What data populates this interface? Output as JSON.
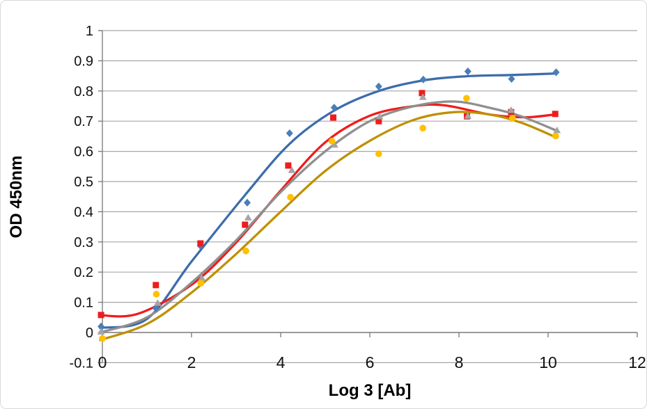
{
  "chart_data": {
    "type": "scatter",
    "title": "",
    "xlabel": "Log 3 [Ab]",
    "ylabel": "OD 450nm",
    "xlim": [
      0,
      12
    ],
    "ylim": [
      -0.1,
      1
    ],
    "x_ticks": [
      "0",
      "2",
      "4",
      "6",
      "8",
      "10",
      "12"
    ],
    "x_tick_values": [
      0,
      2,
      4,
      6,
      8,
      10,
      12
    ],
    "y_ticks": [
      "1",
      "0.9",
      "0.8",
      "0.7",
      "0.6",
      "0.5",
      "0.4",
      "0.3",
      "0.2",
      "0.1",
      "0",
      "-0.1"
    ],
    "y_tick_values": [
      1,
      0.9,
      0.8,
      0.7,
      0.6,
      0.5,
      0.4,
      0.3,
      0.2,
      0.1,
      0,
      -0.1
    ],
    "grid": "horizontal",
    "legend": "none",
    "axis_crosses_at_y": 0,
    "gridline_color": "#a6a6a6",
    "axis_color": "#7f7f7f",
    "series": [
      {
        "name": "blue-diamonds",
        "marker": "diamond",
        "marker_color": "#4a7ebb",
        "line_color": "#3c6cab",
        "points": [
          [
            -0.03,
            0.02
          ],
          [
            1.2,
            0.08
          ],
          [
            2.2,
            0.287
          ],
          [
            3.25,
            0.43
          ],
          [
            4.2,
            0.66
          ],
          [
            5.2,
            0.745
          ],
          [
            6.2,
            0.815
          ],
          [
            7.2,
            0.838
          ],
          [
            8.2,
            0.865
          ],
          [
            9.18,
            0.84
          ],
          [
            10.18,
            0.862
          ]
        ],
        "trend": [
          [
            -0.05,
            0.015
          ],
          [
            1,
            0.045
          ],
          [
            2,
            0.235
          ],
          [
            3.2,
            0.455
          ],
          [
            4.2,
            0.625
          ],
          [
            5.2,
            0.735
          ],
          [
            6.2,
            0.8
          ],
          [
            7.2,
            0.835
          ],
          [
            8.2,
            0.849
          ],
          [
            9.2,
            0.853
          ],
          [
            10.2,
            0.858
          ]
        ]
      },
      {
        "name": "red-squares",
        "marker": "square",
        "marker_color": "#ee1c1c",
        "line_color": "#ee1c1c",
        "points": [
          [
            -0.03,
            0.058
          ],
          [
            1.2,
            0.157
          ],
          [
            2.2,
            0.295
          ],
          [
            3.2,
            0.357
          ],
          [
            4.17,
            0.553
          ],
          [
            5.18,
            0.712
          ],
          [
            6.2,
            0.7
          ],
          [
            7.17,
            0.793
          ],
          [
            8.18,
            0.716
          ],
          [
            9.17,
            0.73
          ],
          [
            10.16,
            0.724
          ]
        ],
        "trend": [
          [
            -0.05,
            0.057
          ],
          [
            0.8,
            0.062
          ],
          [
            2,
            0.158
          ],
          [
            3,
            0.298
          ],
          [
            4,
            0.47
          ],
          [
            5,
            0.63
          ],
          [
            6,
            0.718
          ],
          [
            7,
            0.75
          ],
          [
            7.7,
            0.752
          ],
          [
            8.7,
            0.722
          ],
          [
            9.5,
            0.713
          ],
          [
            10.2,
            0.723
          ]
        ]
      },
      {
        "name": "gray-triangles",
        "marker": "triangle",
        "marker_color": "#a5a5a5",
        "line_color": "#8f8f8f",
        "points": [
          [
            -0.03,
            0.003
          ],
          [
            1.24,
            0.098
          ],
          [
            2.23,
            0.181
          ],
          [
            3.27,
            0.381
          ],
          [
            4.25,
            0.538
          ],
          [
            5.21,
            0.622
          ],
          [
            6.22,
            0.716
          ],
          [
            7.19,
            0.78
          ],
          [
            8.2,
            0.718
          ],
          [
            9.17,
            0.737
          ],
          [
            10.2,
            0.67
          ]
        ],
        "trend": [
          [
            -0.05,
            0.0
          ],
          [
            1,
            0.05
          ],
          [
            2,
            0.165
          ],
          [
            3,
            0.305
          ],
          [
            4,
            0.465
          ],
          [
            5,
            0.6
          ],
          [
            6,
            0.7
          ],
          [
            7,
            0.75
          ],
          [
            7.9,
            0.765
          ],
          [
            8.7,
            0.744
          ],
          [
            9.4,
            0.716
          ],
          [
            10.2,
            0.668
          ]
        ]
      },
      {
        "name": "yellow-circles",
        "marker": "circle",
        "marker_color": "#ffc000",
        "line_color": "#bf9000",
        "points": [
          [
            0,
            -0.02
          ],
          [
            1.21,
            0.127
          ],
          [
            2.21,
            0.163
          ],
          [
            3.22,
            0.27
          ],
          [
            4.22,
            0.448
          ],
          [
            5.15,
            0.634
          ],
          [
            6.2,
            0.592
          ],
          [
            7.19,
            0.677
          ],
          [
            8.17,
            0.776
          ],
          [
            9.2,
            0.71
          ],
          [
            10.17,
            0.651
          ]
        ],
        "trend": [
          [
            -0.05,
            -0.025
          ],
          [
            1,
            0.028
          ],
          [
            2,
            0.132
          ],
          [
            3,
            0.26
          ],
          [
            4,
            0.4
          ],
          [
            5,
            0.535
          ],
          [
            6,
            0.635
          ],
          [
            7,
            0.705
          ],
          [
            7.9,
            0.73
          ],
          [
            8.7,
            0.722
          ],
          [
            9.4,
            0.695
          ],
          [
            10.2,
            0.645
          ]
        ]
      }
    ]
  }
}
